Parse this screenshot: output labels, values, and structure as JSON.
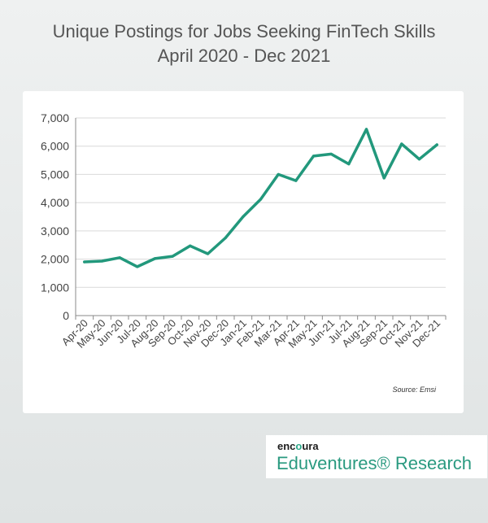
{
  "chart_data": {
    "type": "line",
    "title": "Unique Postings for Jobs Seeking FinTech Skills",
    "subtitle": "April 2020 - Dec 2021",
    "categories": [
      "Apr-20",
      "May-20",
      "Jun-20",
      "Jul-20",
      "Aug-20",
      "Sep-20",
      "Oct-20",
      "Nov-20",
      "Dec-20",
      "Jan-21",
      "Feb-21",
      "Mar-21",
      "Apr-21",
      "May-21",
      "Jun-21",
      "Jul-21",
      "Aug-21",
      "Sep-21",
      "Oct-21",
      "Nov-21",
      "Dec-21"
    ],
    "values": [
      1900,
      1930,
      2050,
      1730,
      2020,
      2100,
      2470,
      2190,
      2750,
      3500,
      4120,
      5000,
      4780,
      5650,
      5720,
      5370,
      6600,
      4870,
      6080,
      5540,
      6050
    ],
    "ylim": [
      0,
      7000
    ],
    "yticks": [
      "0",
      "1,000",
      "2,000",
      "3,000",
      "4,000",
      "5,000",
      "6,000",
      "7,000"
    ],
    "ytick_values": [
      0,
      1000,
      2000,
      3000,
      4000,
      5000,
      6000,
      7000
    ],
    "grid": true,
    "line_color": "#22987c",
    "source": "Source: Emsi"
  },
  "brand": {
    "name_prefix": "enc",
    "name_o": "o",
    "name_suffix": "ura",
    "subtitle": "Eduventures® Research"
  }
}
